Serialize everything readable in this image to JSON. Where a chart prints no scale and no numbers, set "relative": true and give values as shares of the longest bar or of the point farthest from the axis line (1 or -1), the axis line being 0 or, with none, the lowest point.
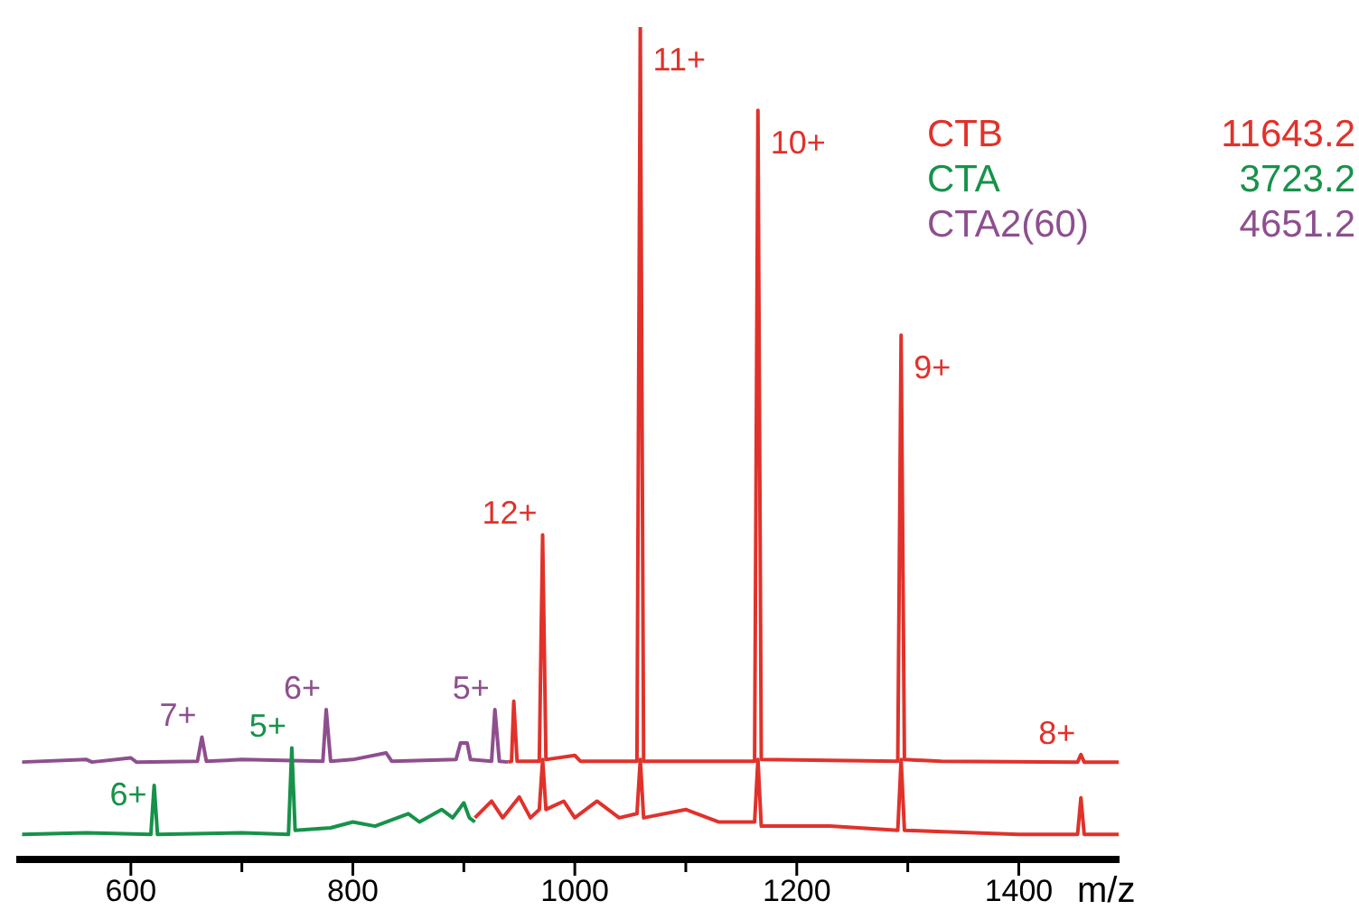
{
  "chart_data": {
    "type": "line",
    "relative": true,
    "xlabel": "m/z",
    "xlim": [
      500,
      1490
    ],
    "xticks": [
      600,
      {
        "value": 700,
        "label": null
      },
      800,
      {
        "value": 900,
        "label": null
      },
      1000,
      {
        "value": 1100,
        "label": null
      },
      1200,
      {
        "value": 1300,
        "label": null
      },
      1400
    ],
    "legend": "top right",
    "grid": false,
    "series": [
      {
        "name": "CTB",
        "color": "#e0322b",
        "x": [
          940,
          943,
          945,
          948,
          968,
          971,
          974,
          1000,
          1005,
          1056,
          1059,
          1062,
          1162,
          1165,
          1168,
          1291,
          1294,
          1297,
          1330,
          1453,
          1456,
          1459,
          1490
        ],
        "values": [
          0.117,
          0.118,
          0.19,
          0.118,
          0.118,
          0.39,
          0.12,
          0.125,
          0.118,
          0.118,
          1.0,
          0.118,
          0.118,
          0.9,
          0.12,
          0.118,
          0.63,
          0.12,
          0.118,
          0.117,
          0.126,
          0.117,
          0.117
        ]
      },
      {
        "name": "CTA",
        "color": "#17924a",
        "x": [
          502,
          560,
          618,
          621,
          624,
          700,
          742,
          745,
          748,
          780,
          800,
          820,
          850,
          860,
          880,
          890,
          900,
          905,
          910
        ],
        "values": [
          0.03,
          0.032,
          0.03,
          0.089,
          0.03,
          0.032,
          0.03,
          0.134,
          0.035,
          0.038,
          0.045,
          0.04,
          0.055,
          0.045,
          0.06,
          0.05,
          0.068,
          0.05,
          0.045
        ]
      },
      {
        "name": "CTA2(60)",
        "color": "#8e4f8e",
        "x": [
          502,
          560,
          565,
          600,
          605,
          660,
          664,
          668,
          700,
          773,
          776,
          780,
          800,
          830,
          835,
          893,
          897,
          903,
          906,
          925,
          928,
          932,
          940
        ],
        "values": [
          0.117,
          0.12,
          0.117,
          0.122,
          0.117,
          0.118,
          0.147,
          0.118,
          0.12,
          0.118,
          0.18,
          0.118,
          0.12,
          0.128,
          0.118,
          0.12,
          0.14,
          0.14,
          0.12,
          0.118,
          0.18,
          0.118,
          0.117
        ]
      },
      {
        "color": "#e0322b",
        "x": [
          910,
          925,
          935,
          950,
          960,
          968,
          971,
          974,
          990,
          1000,
          1020,
          1040,
          1056,
          1059,
          1062,
          1100,
          1130,
          1162,
          1165,
          1168,
          1230,
          1291,
          1294,
          1297,
          1400,
          1453,
          1456,
          1459,
          1490
        ],
        "values": [
          0.05,
          0.07,
          0.05,
          0.075,
          0.05,
          0.06,
          0.12,
          0.06,
          0.07,
          0.05,
          0.07,
          0.05,
          0.055,
          0.12,
          0.05,
          0.06,
          0.045,
          0.045,
          0.12,
          0.04,
          0.04,
          0.035,
          0.12,
          0.035,
          0.03,
          0.03,
          0.074,
          0.03,
          0.03
        ]
      }
    ],
    "annotations": [
      {
        "text": "12+",
        "x": 971,
        "y": 0.39
      },
      {
        "text": "11+",
        "x": 1059,
        "y": 1.0
      },
      {
        "text": "10+",
        "x": 1165,
        "y": 0.9
      },
      {
        "text": "9+",
        "x": 1294,
        "y": 0.63
      },
      {
        "text": "8+",
        "x": 1456,
        "y": 0.126
      },
      {
        "text": "7+",
        "x": 664,
        "y": 0.147
      },
      {
        "text": "6+",
        "x": 776,
        "y": 0.18
      },
      {
        "text": "5+",
        "x": 928,
        "y": 0.18
      },
      {
        "text": "6+",
        "x": 621,
        "y": 0.089
      },
      {
        "text": "5+",
        "x": 745,
        "y": 0.134
      },
      "11643.2",
      "3723.2",
      "4651.2"
    ]
  }
}
